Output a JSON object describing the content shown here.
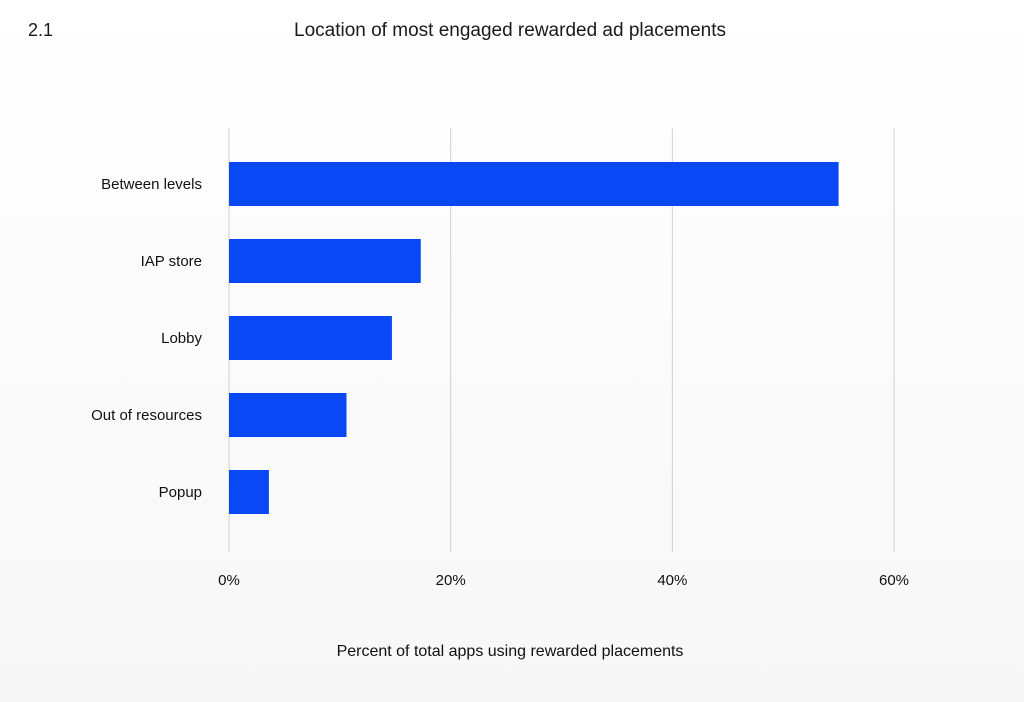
{
  "figure_number": "2.1",
  "chart_data": {
    "type": "bar",
    "orientation": "horizontal",
    "title": "Location of most engaged rewarded ad placements",
    "xlabel": "Percent of total apps using rewarded placements",
    "ylabel": "",
    "categories": [
      "Between levels",
      "IAP store",
      "Lobby",
      "Out of resources",
      "Popup"
    ],
    "values": [
      55,
      17.3,
      14.7,
      10.6,
      3.6
    ],
    "xlim": [
      0,
      60
    ],
    "xticks": [
      0,
      20,
      40,
      60
    ],
    "xtick_labels": [
      "0%",
      "20%",
      "40%",
      "60%"
    ],
    "bar_color": "#0a47f5",
    "grid": true,
    "grid_color": "#d0d0d0",
    "legend": "none"
  }
}
